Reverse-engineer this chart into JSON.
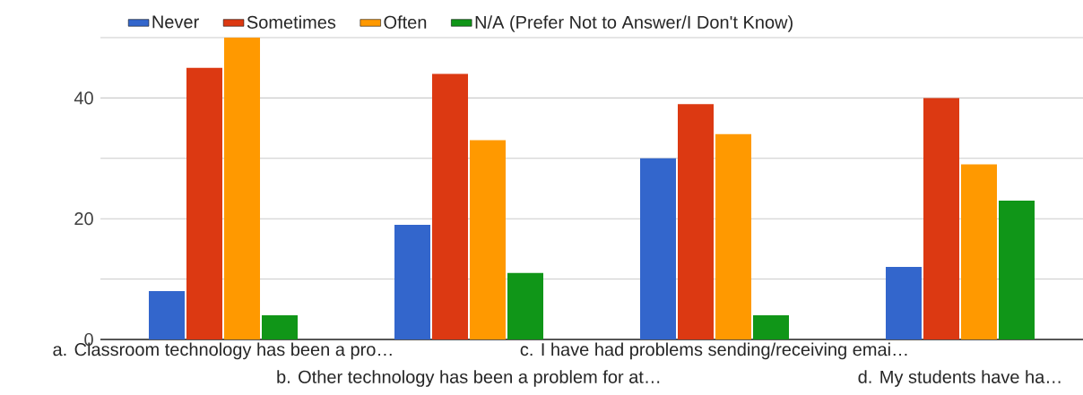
{
  "chart_data": {
    "type": "bar",
    "categories": [
      "a. Classroom technology has been a pro…",
      "b. Other technology has been a problem for at…",
      "c. I have had problems sending/receiving emai…",
      "d. My students have ha…"
    ],
    "series": [
      {
        "name": "Never",
        "color": "#3366cc",
        "values": [
          8,
          19,
          30,
          12
        ]
      },
      {
        "name": "Sometimes",
        "color": "#dc3912",
        "values": [
          45,
          44,
          39,
          40
        ]
      },
      {
        "name": "Often",
        "color": "#ff9900",
        "values": [
          50,
          33,
          34,
          29
        ]
      },
      {
        "name": "N/A (Prefer Not to Answer/I Don't Know)",
        "color": "#109618",
        "values": [
          4,
          11,
          4,
          23
        ]
      }
    ],
    "ylim": [
      0,
      50
    ],
    "yticks": [
      0,
      {
        "value": 10,
        "label": null
      },
      20,
      {
        "value": 30,
        "label": null
      },
      40,
      {
        "value": 50,
        "label": null
      }
    ],
    "grid": "y",
    "legend": "top"
  }
}
